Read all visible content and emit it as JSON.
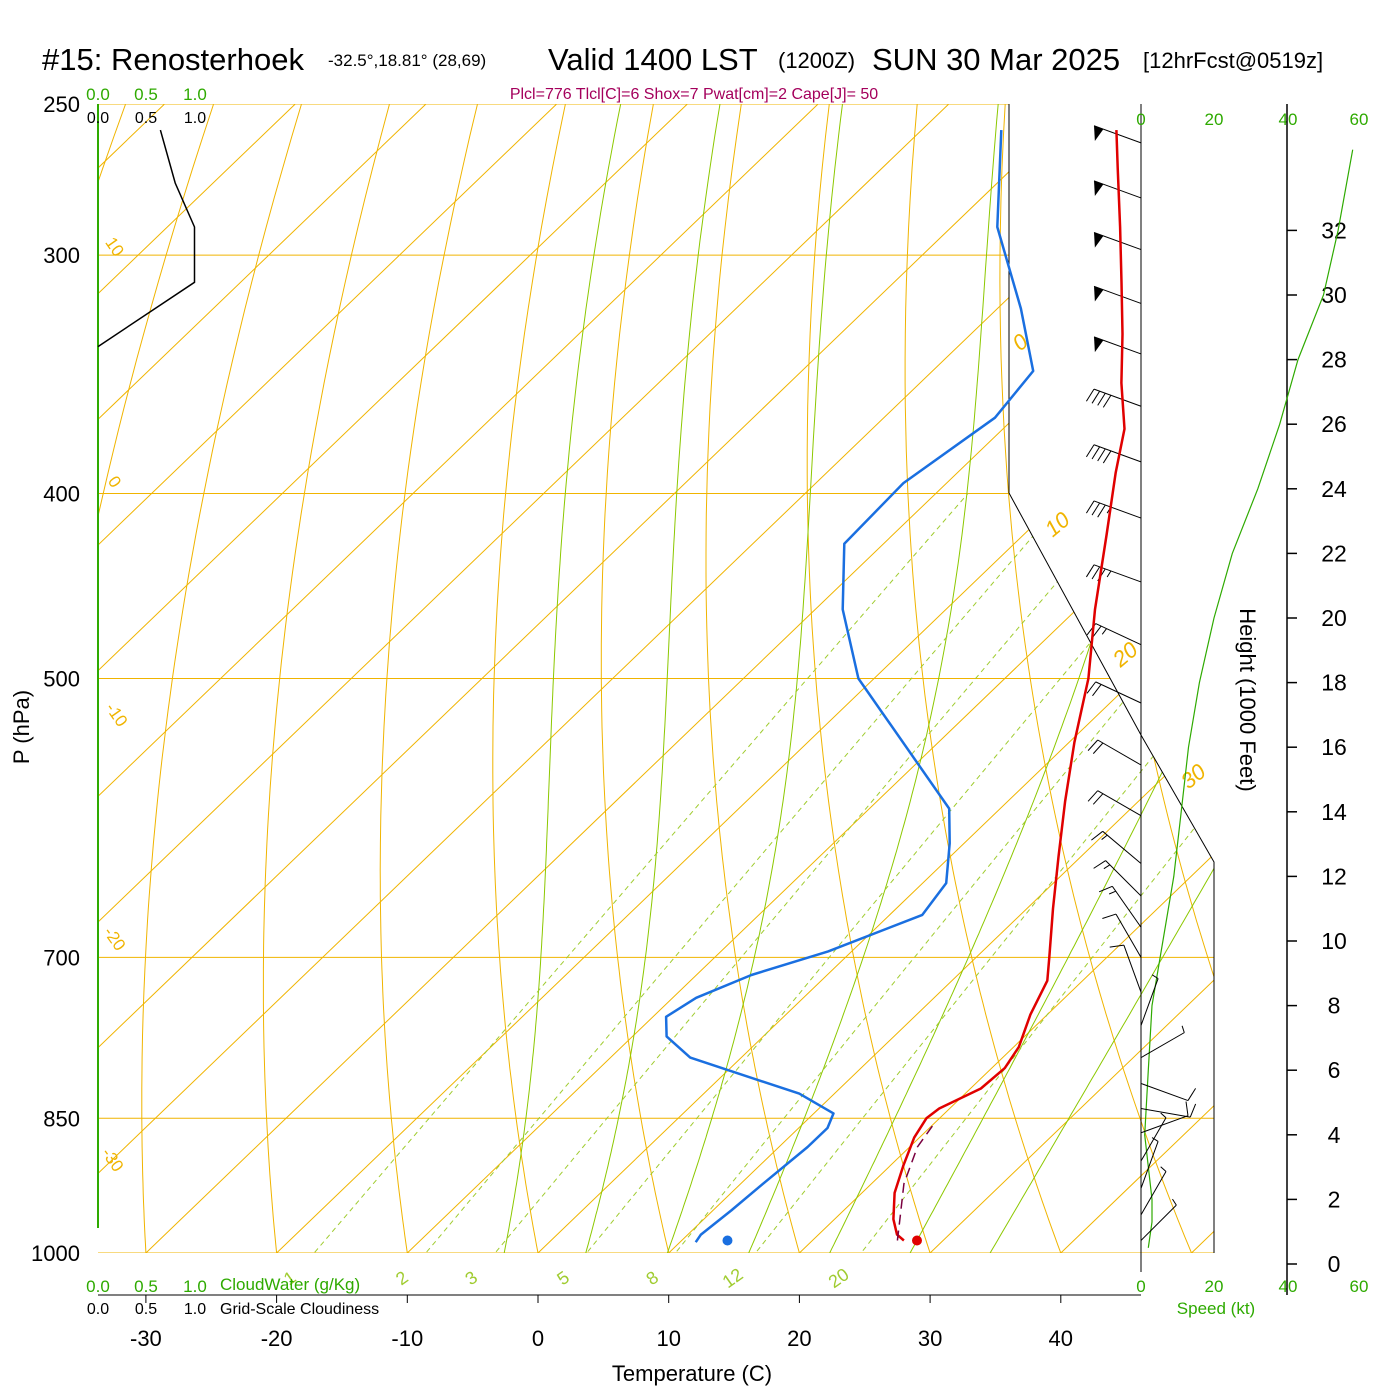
{
  "header": {
    "station": "#15: Renosterhoek",
    "coords": "-32.5°,18.81° (28,69)",
    "valid": "Valid 1400 LST",
    "zulu": "(1200Z)",
    "date": "SUN 30 Mar 2025",
    "forecast": "[12hrFcst@0519z]"
  },
  "params_line": "Plcl=776 Tlcl[C]=6 Shox=7 Pwat[cm]=2 Cape[J]= 50",
  "colors": {
    "isotherm": "#f0b400",
    "dry_adiabat": "#f0b400",
    "moist_adiabat": "#8cc800",
    "mixing_ratio": "#a0cc30",
    "temperature": "#e00000",
    "dewpoint": "#1a6fe0",
    "parcel": "#7a0040",
    "cloud_axis": "#2eaa00",
    "speed_curve": "#2eaa00",
    "barb": "#000000"
  },
  "chart_data": {
    "type": "line",
    "title": "#15: Renosterhoek",
    "xlabel": "Temperature (C)",
    "ylabel": "P (hPa)",
    "y2label": "Height (1000 Feet)",
    "x_ticks": [
      "-30",
      "-20",
      "-10",
      "0",
      "10",
      "20",
      "30",
      "40"
    ],
    "x_tick_values": [
      -30,
      -20,
      -10,
      0,
      10,
      20,
      30,
      40
    ],
    "pressure_ticks": [
      "250",
      "300",
      "400",
      "500",
      "700",
      "850",
      "1000"
    ],
    "pressure_tick_values": [
      250,
      300,
      400,
      500,
      700,
      850,
      1000
    ],
    "height_ticks": [
      "0",
      "2",
      "4",
      "6",
      "8",
      "10",
      "12",
      "14",
      "16",
      "18",
      "20",
      "22",
      "24",
      "26",
      "28",
      "30",
      "32"
    ],
    "height_tick_values": [
      0,
      2,
      4,
      6,
      8,
      10,
      12,
      14,
      16,
      18,
      20,
      22,
      24,
      26,
      28,
      30,
      32
    ],
    "skew": true,
    "log_pressure_axis": true,
    "isotherm_labels": [
      "10",
      "0",
      "-10",
      "-20",
      "-30",
      "0",
      "10",
      "20",
      "30"
    ],
    "mixing_ratio_labels": [
      "1",
      "2",
      "3",
      "5",
      "8",
      "12",
      "20"
    ],
    "cloud_water_axis": {
      "label": "CloudWater (g/Kg)",
      "ticks": [
        "0.0",
        "0.5",
        "1.0"
      ]
    },
    "cloudiness_axis": {
      "label": "Grid-Scale Cloudiness",
      "ticks": [
        "0.0",
        "0.5",
        "1.0"
      ]
    },
    "speed_axis": {
      "label": "Speed (kt)",
      "ticks": [
        "0",
        "20",
        "40",
        "60"
      ]
    },
    "series": [
      {
        "name": "Temperature",
        "color": "#e00000",
        "points": [
          {
            "p": 985,
            "t": 27.0
          },
          {
            "p": 978,
            "t": 26.0
          },
          {
            "p": 960,
            "t": 24.5
          },
          {
            "p": 930,
            "t": 22.5
          },
          {
            "p": 900,
            "t": 21.0
          },
          {
            "p": 870,
            "t": 19.6
          },
          {
            "p": 850,
            "t": 19.0
          },
          {
            "p": 840,
            "t": 19.2
          },
          {
            "p": 820,
            "t": 20.8
          },
          {
            "p": 800,
            "t": 21.0
          },
          {
            "p": 780,
            "t": 20.4
          },
          {
            "p": 750,
            "t": 18.7
          },
          {
            "p": 720,
            "t": 17.3
          },
          {
            "p": 700,
            "t": 15.6
          },
          {
            "p": 660,
            "t": 12.0
          },
          {
            "p": 620,
            "t": 8.3
          },
          {
            "p": 580,
            "t": 4.4
          },
          {
            "p": 540,
            "t": 0.4
          },
          {
            "p": 500,
            "t": -3.6
          },
          {
            "p": 460,
            "t": -8.6
          },
          {
            "p": 420,
            "t": -13.7
          },
          {
            "p": 390,
            "t": -17.9
          },
          {
            "p": 370,
            "t": -20.7
          },
          {
            "p": 350,
            "t": -24.6
          },
          {
            "p": 330,
            "t": -28.4
          },
          {
            "p": 310,
            "t": -32.6
          },
          {
            "p": 290,
            "t": -37.1
          },
          {
            "p": 270,
            "t": -42.0
          },
          {
            "p": 258,
            "t": -45.1
          }
        ]
      },
      {
        "name": "Dew point",
        "color": "#1a6fe0",
        "points": [
          {
            "p": 987,
            "t": 11.2
          },
          {
            "p": 978,
            "t": 11.0
          },
          {
            "p": 950,
            "t": 11.4
          },
          {
            "p": 920,
            "t": 11.7
          },
          {
            "p": 880,
            "t": 12.2
          },
          {
            "p": 860,
            "t": 12.2
          },
          {
            "p": 845,
            "t": 11.5
          },
          {
            "p": 825,
            "t": 7.3
          },
          {
            "p": 790,
            "t": -3.9
          },
          {
            "p": 770,
            "t": -7.4
          },
          {
            "p": 752,
            "t": -9.0
          },
          {
            "p": 735,
            "t": -8.2
          },
          {
            "p": 715,
            "t": -5.8
          },
          {
            "p": 695,
            "t": -1.8
          },
          {
            "p": 665,
            "t": 2.5
          },
          {
            "p": 640,
            "t": 1.8
          },
          {
            "p": 610,
            "t": -1.1
          },
          {
            "p": 585,
            "t": -3.9
          },
          {
            "p": 500,
            "t": -21.2
          },
          {
            "p": 460,
            "t": -27.9
          },
          {
            "p": 425,
            "t": -33.0
          },
          {
            "p": 395,
            "t": -33.3
          },
          {
            "p": 365,
            "t": -31.5
          },
          {
            "p": 345,
            "t": -32.3
          },
          {
            "p": 320,
            "t": -38.2
          },
          {
            "p": 290,
            "t": -46.5
          },
          {
            "p": 258,
            "t": -53.9
          }
        ]
      },
      {
        "name": "Parcel",
        "color": "#7a0040",
        "dashed": true,
        "points": [
          {
            "p": 985,
            "t": 26.5
          },
          {
            "p": 960,
            "t": 25.0
          },
          {
            "p": 920,
            "t": 22.5
          },
          {
            "p": 880,
            "t": 20.6
          },
          {
            "p": 855,
            "t": 20.0
          }
        ]
      }
    ],
    "surface_markers": [
      {
        "name": "Surface temperature",
        "p": 985,
        "t": 28.0,
        "color": "#e00000"
      },
      {
        "name": "Surface dew point",
        "p": 985,
        "t": 13.5,
        "color": "#1a6fe0"
      }
    ],
    "cloudiness_profile": [
      {
        "p": 258,
        "v": 0.55
      },
      {
        "p": 275,
        "v": 0.68
      },
      {
        "p": 290,
        "v": 0.85
      },
      {
        "p": 310,
        "v": 0.85
      },
      {
        "p": 335,
        "v": 0.0
      }
    ],
    "speed_profile": [
      {
        "h_kft": 0.5,
        "kt": 2
      },
      {
        "h_kft": 1.3,
        "kt": 3
      },
      {
        "h_kft": 2.0,
        "kt": 3
      },
      {
        "h_kft": 4.0,
        "kt": 1
      },
      {
        "h_kft": 6.0,
        "kt": 2
      },
      {
        "h_kft": 8.0,
        "kt": 3
      },
      {
        "h_kft": 10.0,
        "kt": 6
      },
      {
        "h_kft": 12.0,
        "kt": 9
      },
      {
        "h_kft": 14.0,
        "kt": 11
      },
      {
        "h_kft": 16.0,
        "kt": 13
      },
      {
        "h_kft": 18.0,
        "kt": 16
      },
      {
        "h_kft": 20.0,
        "kt": 20
      },
      {
        "h_kft": 22.0,
        "kt": 25
      },
      {
        "h_kft": 24.0,
        "kt": 32
      },
      {
        "h_kft": 26.0,
        "kt": 38
      },
      {
        "h_kft": 28.0,
        "kt": 43
      },
      {
        "h_kft": 30.0,
        "kt": 50
      },
      {
        "h_kft": 32.0,
        "kt": 54
      },
      {
        "h_kft": 34.5,
        "kt": 58
      }
    ],
    "wind_barbs": [
      {
        "p": 262,
        "dir": 290,
        "kt": 50
      },
      {
        "p": 280,
        "dir": 290,
        "kt": 50
      },
      {
        "p": 298,
        "dir": 290,
        "kt": 50
      },
      {
        "p": 318,
        "dir": 290,
        "kt": 50
      },
      {
        "p": 338,
        "dir": 290,
        "kt": 50
      },
      {
        "p": 360,
        "dir": 290,
        "kt": 40
      },
      {
        "p": 385,
        "dir": 290,
        "kt": 40
      },
      {
        "p": 412,
        "dir": 290,
        "kt": 35
      },
      {
        "p": 445,
        "dir": 290,
        "kt": 35
      },
      {
        "p": 480,
        "dir": 295,
        "kt": 25
      },
      {
        "p": 515,
        "dir": 295,
        "kt": 20
      },
      {
        "p": 555,
        "dir": 300,
        "kt": 20
      },
      {
        "p": 590,
        "dir": 300,
        "kt": 20
      },
      {
        "p": 625,
        "dir": 310,
        "kt": 15
      },
      {
        "p": 650,
        "dir": 315,
        "kt": 15
      },
      {
        "p": 675,
        "dir": 325,
        "kt": 15
      },
      {
        "p": 700,
        "dir": 330,
        "kt": 10
      },
      {
        "p": 730,
        "dir": 340,
        "kt": 10
      },
      {
        "p": 760,
        "dir": 20,
        "kt": 5
      },
      {
        "p": 790,
        "dir": 60,
        "kt": 5
      },
      {
        "p": 815,
        "dir": 110,
        "kt": 10
      },
      {
        "p": 840,
        "dir": 100,
        "kt": 10
      },
      {
        "p": 865,
        "dir": 70,
        "kt": 10
      },
      {
        "p": 895,
        "dir": 30,
        "kt": 5
      },
      {
        "p": 925,
        "dir": 20,
        "kt": 5
      },
      {
        "p": 955,
        "dir": 30,
        "kt": 5
      },
      {
        "p": 985,
        "dir": 45,
        "kt": 5
      }
    ]
  }
}
